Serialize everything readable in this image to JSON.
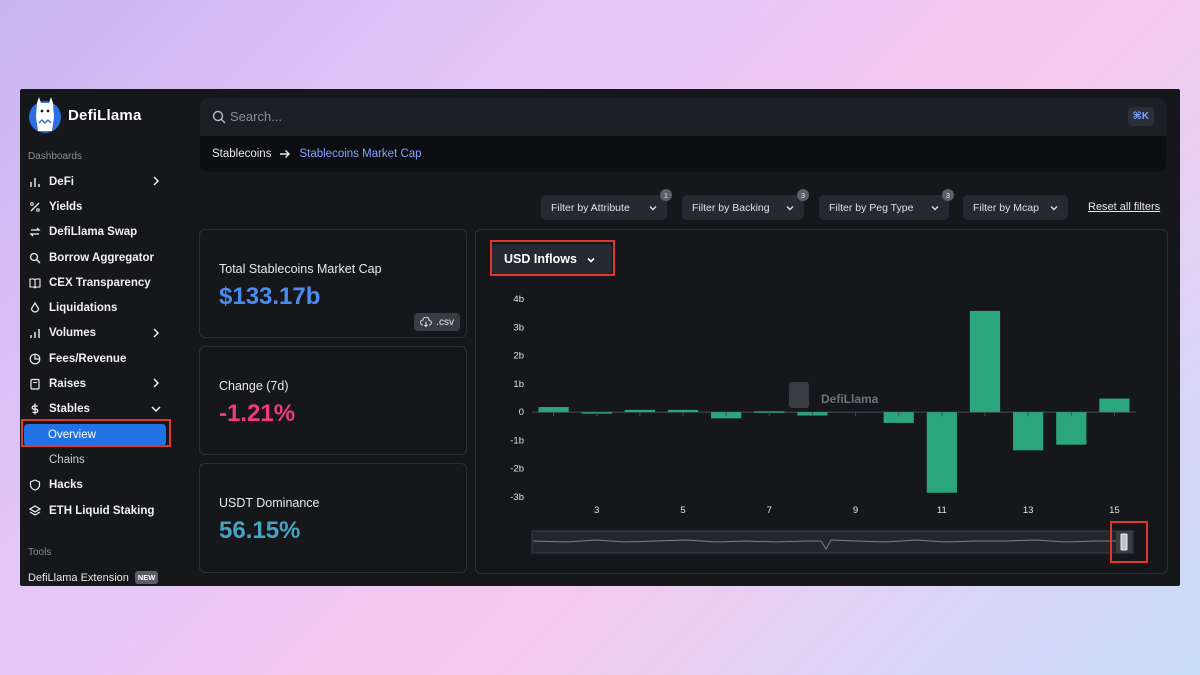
{
  "brand": {
    "name": "DefiLlama"
  },
  "sidebar": {
    "dashboards_label": "Dashboards",
    "items": [
      {
        "label": "DeFi",
        "icon": "bar-chart-icon",
        "has_chevron": true
      },
      {
        "label": "Yields",
        "icon": "percent-icon"
      },
      {
        "label": "DefiLlama Swap",
        "icon": "swap-icon"
      },
      {
        "label": "Borrow Aggregator",
        "icon": "search-icon"
      },
      {
        "label": "CEX Transparency",
        "icon": "book-icon"
      },
      {
        "label": "Liquidations",
        "icon": "droplet-icon"
      },
      {
        "label": "Volumes",
        "icon": "bar-chart-icon",
        "has_chevron": true
      },
      {
        "label": "Fees/Revenue",
        "icon": "pie-chart-icon"
      },
      {
        "label": "Raises",
        "icon": "clipboard-icon",
        "has_chevron": true
      },
      {
        "label": "Stables",
        "icon": "dollar-icon",
        "expanded": true
      }
    ],
    "stables_sub": [
      {
        "label": "Overview",
        "active": true
      },
      {
        "label": "Chains"
      }
    ],
    "items_after": [
      {
        "label": "Hacks",
        "icon": "shield-icon"
      },
      {
        "label": "ETH Liquid Staking",
        "icon": "layers-icon"
      }
    ],
    "tools_label": "Tools",
    "extension": {
      "label": "DefiLlama Extension",
      "badge": "NEW"
    }
  },
  "search": {
    "placeholder": "Search...",
    "shortcut": "⌘K"
  },
  "breadcrumb": {
    "root": "Stablecoins",
    "current": "Stablecoins Market Cap"
  },
  "filters": [
    {
      "label": "Filter by Attribute",
      "count": "1"
    },
    {
      "label": "Filter by Backing",
      "count": "3"
    },
    {
      "label": "Filter by Peg Type",
      "count": "3"
    },
    {
      "label": "Filter by Mcap",
      "count": ""
    }
  ],
  "reset_label": "Reset all filters",
  "stats": {
    "market_cap": {
      "label": "Total Stablecoins Market Cap",
      "value": "$133.17b",
      "csv": ".csv"
    },
    "change": {
      "label": "Change (7d)",
      "value": "-1.21%"
    },
    "dominance": {
      "label": "USDT Dominance",
      "value": "56.15%"
    }
  },
  "colors": {
    "accent_blue": "#4b8cf0",
    "negative_pink": "#f0397e",
    "dominance_teal": "#46a3c2",
    "bar_green": "#2aa57c",
    "active_nav": "#2172e5",
    "highlight_red": "#e0362f"
  },
  "chart_dropdown": {
    "label": "USD Inflows"
  },
  "watermark": "DefiLlama",
  "chart_data": {
    "type": "bar",
    "title": "",
    "xlabel": "",
    "ylabel": "",
    "ylim": [
      -3,
      4
    ],
    "y_ticks": [
      "4b",
      "3b",
      "2b",
      "1b",
      "0",
      "-1b",
      "-2b",
      "-3b"
    ],
    "x_tick_labels": [
      "3",
      "5",
      "7",
      "9",
      "11",
      "13",
      "15"
    ],
    "x": [
      2,
      3,
      4,
      5,
      6,
      7,
      8,
      9,
      10,
      11,
      12,
      13,
      14,
      15
    ],
    "values": [
      0.18,
      -0.02,
      0.08,
      0.08,
      -0.22,
      0.03,
      -0.12,
      0,
      -0.38,
      -2.85,
      3.58,
      -1.35,
      -1.15,
      0.48
    ],
    "value_unit": "billion USD",
    "bar_color": "#2aa57c"
  }
}
